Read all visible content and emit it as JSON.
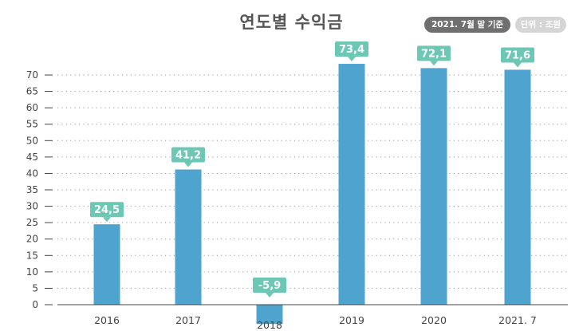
{
  "header": {
    "title": "연도별 수익금",
    "badge_date": "2021. 7월 말 기준",
    "badge_unit": "단위 : 조원"
  },
  "colors": {
    "bar": "#4fa3cf",
    "label_bg": "#6cc8b4",
    "grid": "#9a9a9a",
    "axis": "#444444"
  },
  "chart_data": {
    "type": "bar",
    "title": "연도별 수익금",
    "xlabel": "",
    "ylabel": "",
    "categories": [
      "2016",
      "2017",
      "2018",
      "2019",
      "2020",
      "2021. 7"
    ],
    "values": [
      24.5,
      41.2,
      -5.9,
      73.4,
      72.1,
      71.6
    ],
    "data_labels": [
      "24,5",
      "41,2",
      "-5,9",
      "73,4",
      "72,1",
      "71,6"
    ],
    "y_ticks": [
      0,
      5,
      10,
      15,
      20,
      25,
      30,
      35,
      40,
      45,
      50,
      55,
      60,
      65,
      70
    ],
    "ylim": [
      -3.5,
      70
    ],
    "grid": "horizontal-dotted",
    "legend": "none"
  }
}
